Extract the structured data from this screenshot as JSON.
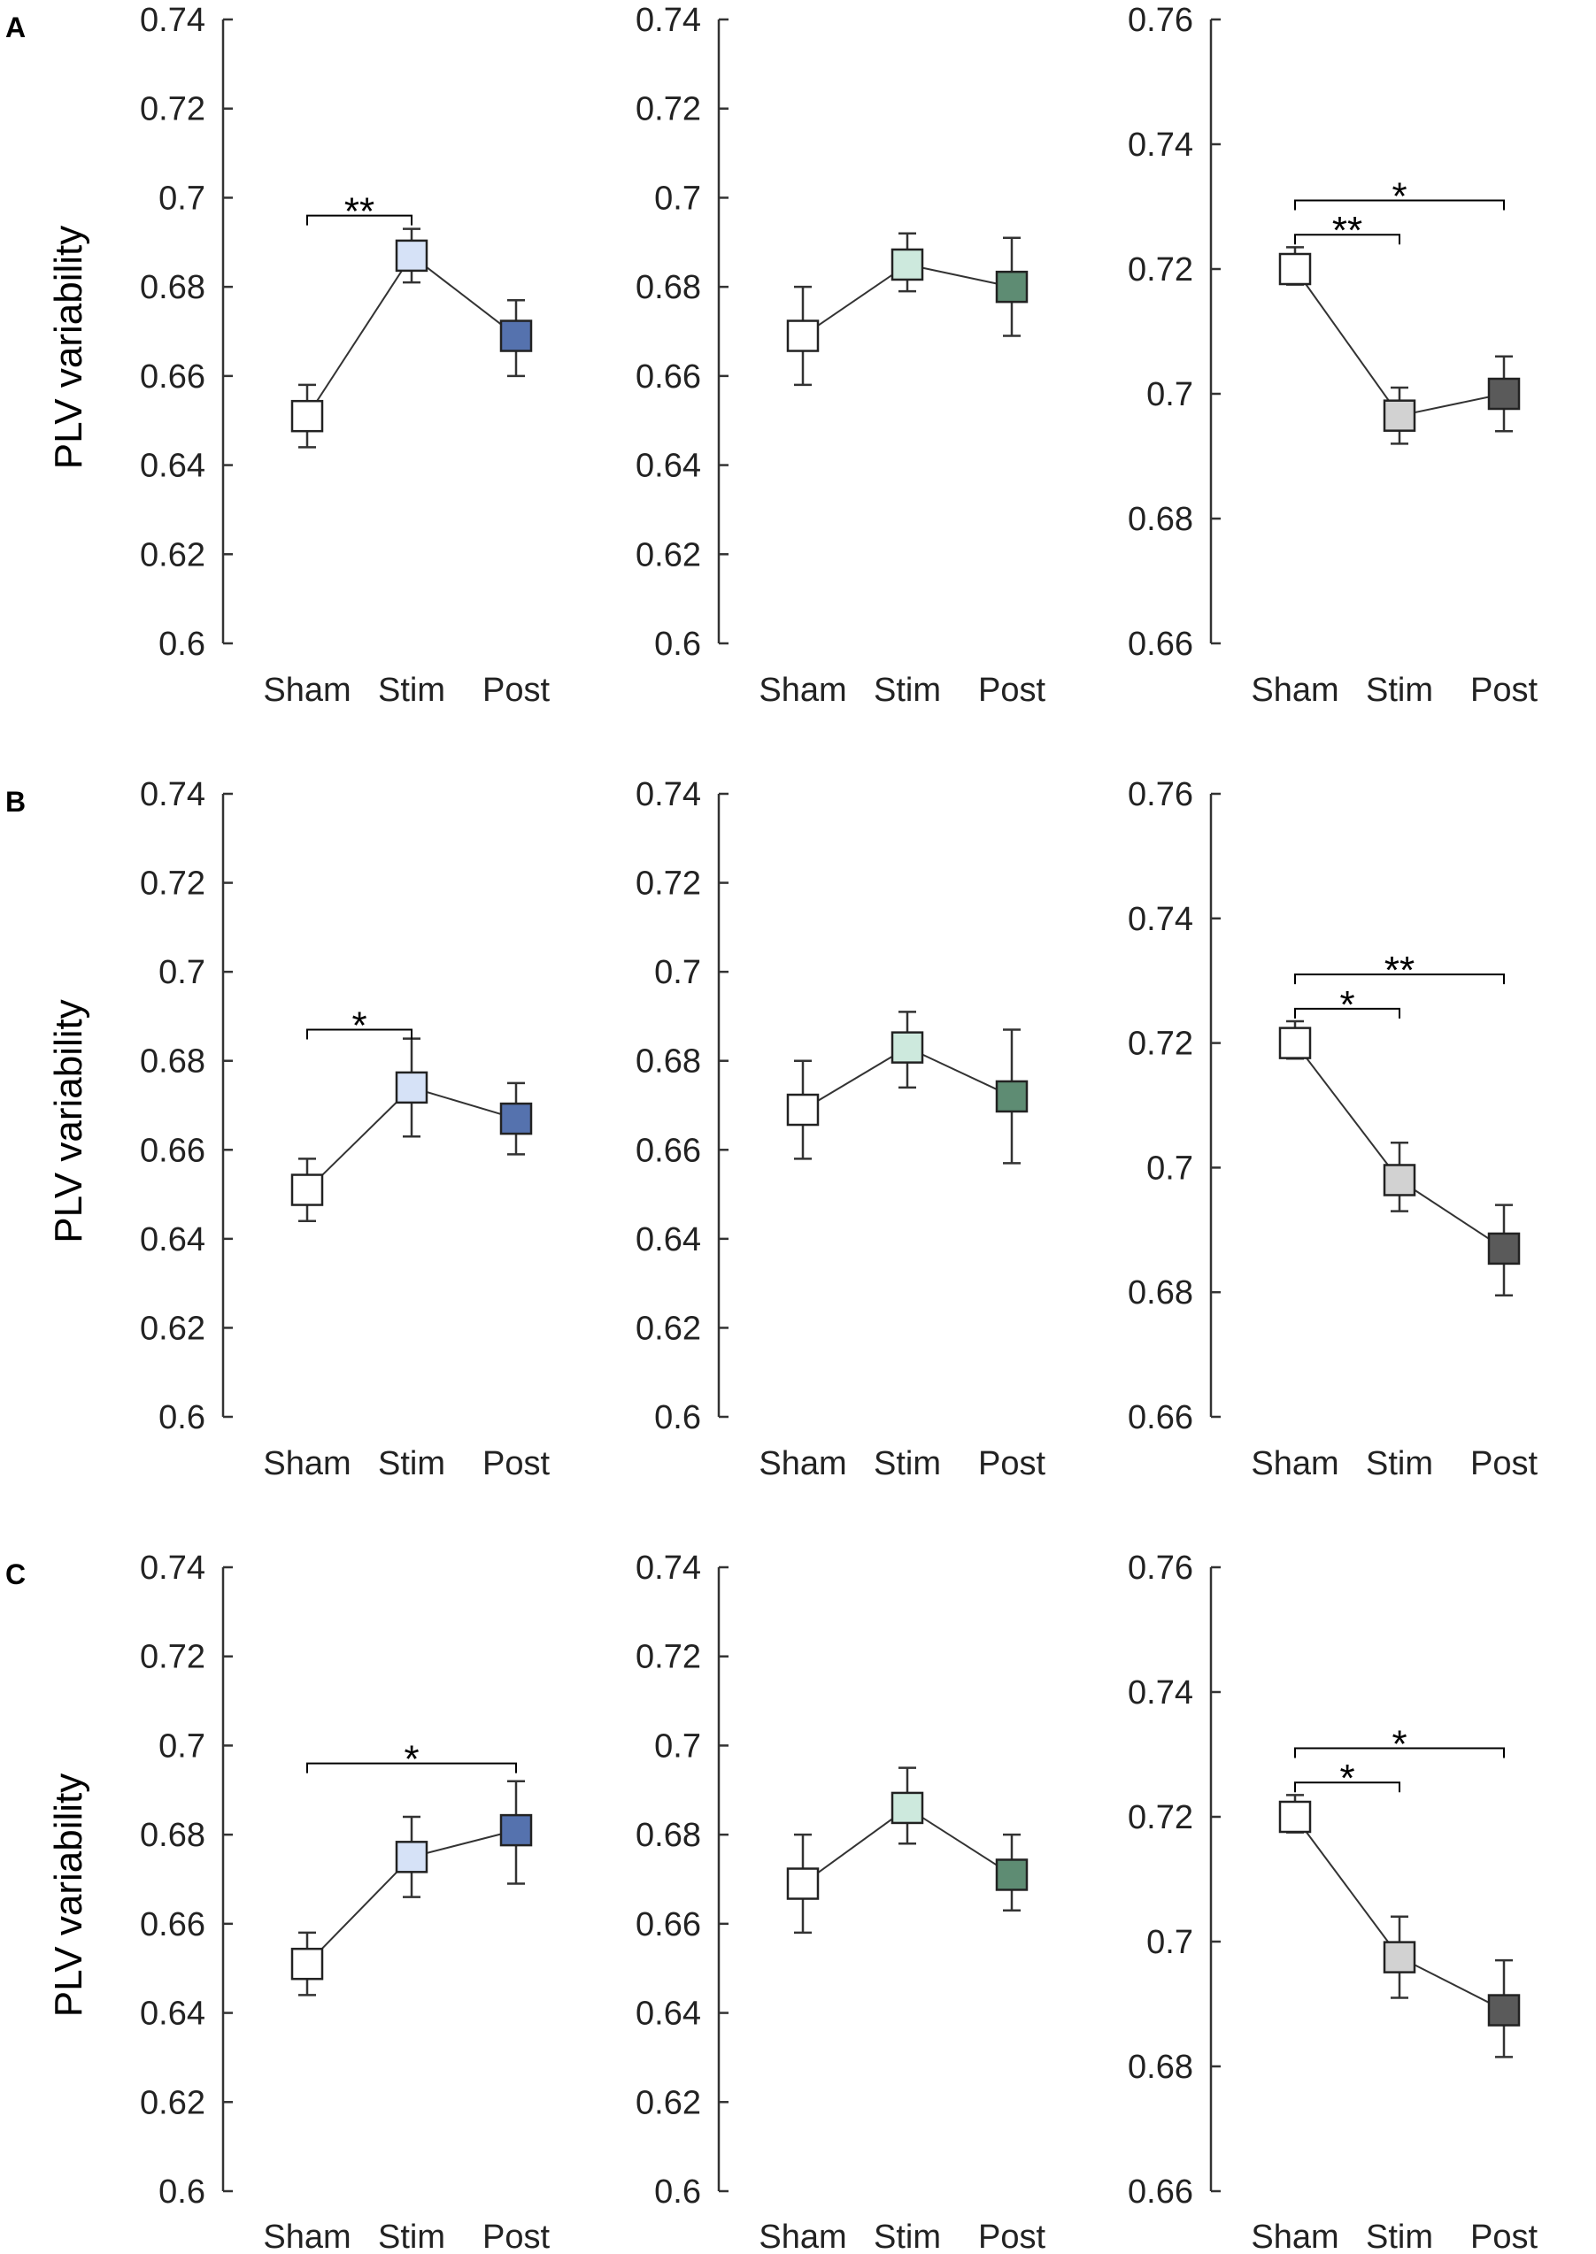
{
  "y_axis_title": "PLV variability",
  "categories": [
    "Sham",
    "Stim",
    "Post"
  ],
  "rows": [
    {
      "label": "A",
      "panels": [
        {
          "type": "line",
          "ylim": [
            0.6,
            0.74
          ],
          "yticks": [
            "0.6",
            "0.62",
            "0.64",
            "0.66",
            "0.68",
            "0.7",
            "0.72",
            "0.74"
          ],
          "points": [
            {
              "category": "Sham",
              "mean": 0.651,
              "err_low": 0.644,
              "err_high": 0.658,
              "color": "#ffffff"
            },
            {
              "category": "Stim",
              "mean": 0.687,
              "err_low": 0.681,
              "err_high": 0.693,
              "color": "#d6e2f7"
            },
            {
              "category": "Post",
              "mean": 0.669,
              "err_low": 0.66,
              "err_high": 0.677,
              "color": "#5572ae"
            }
          ],
          "significance": [
            {
              "from": 0,
              "to": 1,
              "y": 0.696,
              "label": "**"
            }
          ]
        },
        {
          "type": "line",
          "ylim": [
            0.6,
            0.74
          ],
          "yticks": [
            "0.6",
            "0.62",
            "0.64",
            "0.66",
            "0.68",
            "0.7",
            "0.72",
            "0.74"
          ],
          "points": [
            {
              "category": "Sham",
              "mean": 0.669,
              "err_low": 0.658,
              "err_high": 0.68,
              "color": "#ffffff"
            },
            {
              "category": "Stim",
              "mean": 0.685,
              "err_low": 0.679,
              "err_high": 0.692,
              "color": "#cde9dd"
            },
            {
              "category": "Post",
              "mean": 0.68,
              "err_low": 0.669,
              "err_high": 0.691,
              "color": "#5e8c73"
            }
          ],
          "significance": []
        },
        {
          "type": "line",
          "ylim": [
            0.66,
            0.76
          ],
          "yticks": [
            "0.66",
            "0.68",
            "0.7",
            "0.72",
            "0.74",
            "0.76"
          ],
          "points": [
            {
              "category": "Sham",
              "mean": 0.72,
              "err_low": 0.7175,
              "err_high": 0.7235,
              "color": "#ffffff"
            },
            {
              "category": "Stim",
              "mean": 0.6965,
              "err_low": 0.692,
              "err_high": 0.701,
              "color": "#d2d2d2"
            },
            {
              "category": "Post",
              "mean": 0.7,
              "err_low": 0.694,
              "err_high": 0.706,
              "color": "#5a5a5a"
            }
          ],
          "significance": [
            {
              "from": 0,
              "to": 2,
              "y": 0.731,
              "label": "*"
            },
            {
              "from": 0,
              "to": 1,
              "y": 0.7255,
              "label": "**"
            }
          ]
        }
      ]
    },
    {
      "label": "B",
      "panels": [
        {
          "type": "line",
          "ylim": [
            0.6,
            0.74
          ],
          "yticks": [
            "0.6",
            "0.62",
            "0.64",
            "0.66",
            "0.68",
            "0.7",
            "0.72",
            "0.74"
          ],
          "points": [
            {
              "category": "Sham",
              "mean": 0.651,
              "err_low": 0.644,
              "err_high": 0.658,
              "color": "#ffffff"
            },
            {
              "category": "Stim",
              "mean": 0.674,
              "err_low": 0.663,
              "err_high": 0.685,
              "color": "#d6e2f7"
            },
            {
              "category": "Post",
              "mean": 0.667,
              "err_low": 0.659,
              "err_high": 0.675,
              "color": "#5572ae"
            }
          ],
          "significance": [
            {
              "from": 0,
              "to": 1,
              "y": 0.687,
              "label": "*"
            }
          ]
        },
        {
          "type": "line",
          "ylim": [
            0.6,
            0.74
          ],
          "yticks": [
            "0.6",
            "0.62",
            "0.64",
            "0.66",
            "0.68",
            "0.7",
            "0.72",
            "0.74"
          ],
          "points": [
            {
              "category": "Sham",
              "mean": 0.669,
              "err_low": 0.658,
              "err_high": 0.68,
              "color": "#ffffff"
            },
            {
              "category": "Stim",
              "mean": 0.683,
              "err_low": 0.674,
              "err_high": 0.691,
              "color": "#cde9dd"
            },
            {
              "category": "Post",
              "mean": 0.672,
              "err_low": 0.657,
              "err_high": 0.687,
              "color": "#5e8c73"
            }
          ],
          "significance": []
        },
        {
          "type": "line",
          "ylim": [
            0.66,
            0.76
          ],
          "yticks": [
            "0.66",
            "0.68",
            "0.7",
            "0.72",
            "0.74",
            "0.76"
          ],
          "points": [
            {
              "category": "Sham",
              "mean": 0.72,
              "err_low": 0.7175,
              "err_high": 0.7235,
              "color": "#ffffff"
            },
            {
              "category": "Stim",
              "mean": 0.698,
              "err_low": 0.693,
              "err_high": 0.704,
              "color": "#d2d2d2"
            },
            {
              "category": "Post",
              "mean": 0.687,
              "err_low": 0.6795,
              "err_high": 0.694,
              "color": "#5a5a5a"
            }
          ],
          "significance": [
            {
              "from": 0,
              "to": 2,
              "y": 0.731,
              "label": "**"
            },
            {
              "from": 0,
              "to": 1,
              "y": 0.7255,
              "label": "*"
            }
          ]
        }
      ]
    },
    {
      "label": "C",
      "panels": [
        {
          "type": "line",
          "ylim": [
            0.6,
            0.74
          ],
          "yticks": [
            "0.6",
            "0.62",
            "0.64",
            "0.66",
            "0.68",
            "0.7",
            "0.72",
            "0.74"
          ],
          "points": [
            {
              "category": "Sham",
              "mean": 0.651,
              "err_low": 0.644,
              "err_high": 0.658,
              "color": "#ffffff"
            },
            {
              "category": "Stim",
              "mean": 0.675,
              "err_low": 0.666,
              "err_high": 0.684,
              "color": "#d6e2f7"
            },
            {
              "category": "Post",
              "mean": 0.681,
              "err_low": 0.669,
              "err_high": 0.692,
              "color": "#5572ae"
            }
          ],
          "significance": [
            {
              "from": 0,
              "to": 2,
              "y": 0.696,
              "label": "*"
            }
          ]
        },
        {
          "type": "line",
          "ylim": [
            0.6,
            0.74
          ],
          "yticks": [
            "0.6",
            "0.62",
            "0.64",
            "0.66",
            "0.68",
            "0.7",
            "0.72",
            "0.74"
          ],
          "points": [
            {
              "category": "Sham",
              "mean": 0.669,
              "err_low": 0.658,
              "err_high": 0.68,
              "color": "#ffffff"
            },
            {
              "category": "Stim",
              "mean": 0.686,
              "err_low": 0.678,
              "err_high": 0.695,
              "color": "#cde9dd"
            },
            {
              "category": "Post",
              "mean": 0.671,
              "err_low": 0.663,
              "err_high": 0.68,
              "color": "#5e8c73"
            }
          ],
          "significance": []
        },
        {
          "type": "line",
          "ylim": [
            0.66,
            0.76
          ],
          "yticks": [
            "0.66",
            "0.68",
            "0.7",
            "0.72",
            "0.74",
            "0.76"
          ],
          "points": [
            {
              "category": "Sham",
              "mean": 0.72,
              "err_low": 0.7175,
              "err_high": 0.7235,
              "color": "#ffffff"
            },
            {
              "category": "Stim",
              "mean": 0.6975,
              "err_low": 0.691,
              "err_high": 0.704,
              "color": "#d2d2d2"
            },
            {
              "category": "Post",
              "mean": 0.689,
              "err_low": 0.6815,
              "err_high": 0.697,
              "color": "#5a5a5a"
            }
          ],
          "significance": [
            {
              "from": 0,
              "to": 2,
              "y": 0.731,
              "label": "*"
            },
            {
              "from": 0,
              "to": 1,
              "y": 0.7255,
              "label": "*"
            }
          ]
        }
      ]
    }
  ],
  "chart_data": [
    {
      "type": "line",
      "panel": "A-1",
      "title": "",
      "xlabel": "",
      "ylabel": "PLV variability",
      "categories": [
        "Sham",
        "Stim",
        "Post"
      ],
      "values": [
        0.651,
        0.687,
        0.669
      ],
      "ylim": [
        0.6,
        0.74
      ],
      "annotations": [
        "**"
      ]
    },
    {
      "type": "line",
      "panel": "A-2",
      "title": "",
      "xlabel": "",
      "ylabel": "",
      "categories": [
        "Sham",
        "Stim",
        "Post"
      ],
      "values": [
        0.669,
        0.685,
        0.68
      ],
      "ylim": [
        0.6,
        0.74
      ],
      "annotations": []
    },
    {
      "type": "line",
      "panel": "A-3",
      "title": "",
      "xlabel": "",
      "ylabel": "",
      "categories": [
        "Sham",
        "Stim",
        "Post"
      ],
      "values": [
        0.72,
        0.6965,
        0.7
      ],
      "ylim": [
        0.66,
        0.76
      ],
      "annotations": [
        "**",
        "*"
      ]
    },
    {
      "type": "line",
      "panel": "B-1",
      "title": "",
      "xlabel": "",
      "ylabel": "PLV variability",
      "categories": [
        "Sham",
        "Stim",
        "Post"
      ],
      "values": [
        0.651,
        0.674,
        0.667
      ],
      "ylim": [
        0.6,
        0.74
      ],
      "annotations": [
        "*"
      ]
    },
    {
      "type": "line",
      "panel": "B-2",
      "title": "",
      "xlabel": "",
      "ylabel": "",
      "categories": [
        "Sham",
        "Stim",
        "Post"
      ],
      "values": [
        0.669,
        0.683,
        0.672
      ],
      "ylim": [
        0.6,
        0.74
      ],
      "annotations": []
    },
    {
      "type": "line",
      "panel": "B-3",
      "title": "",
      "xlabel": "",
      "ylabel": "",
      "categories": [
        "Sham",
        "Stim",
        "Post"
      ],
      "values": [
        0.72,
        0.698,
        0.687
      ],
      "ylim": [
        0.66,
        0.76
      ],
      "annotations": [
        "*",
        "**"
      ]
    },
    {
      "type": "line",
      "panel": "C-1",
      "title": "",
      "xlabel": "",
      "ylabel": "PLV variability",
      "categories": [
        "Sham",
        "Stim",
        "Post"
      ],
      "values": [
        0.651,
        0.675,
        0.681
      ],
      "ylim": [
        0.6,
        0.74
      ],
      "annotations": [
        "*"
      ]
    },
    {
      "type": "line",
      "panel": "C-2",
      "title": "",
      "xlabel": "",
      "ylabel": "",
      "categories": [
        "Sham",
        "Stim",
        "Post"
      ],
      "values": [
        0.669,
        0.686,
        0.671
      ],
      "ylim": [
        0.6,
        0.74
      ],
      "annotations": []
    },
    {
      "type": "line",
      "panel": "C-3",
      "title": "",
      "xlabel": "",
      "ylabel": "",
      "categories": [
        "Sham",
        "Stim",
        "Post"
      ],
      "values": [
        0.72,
        0.6975,
        0.689
      ],
      "ylim": [
        0.66,
        0.76
      ],
      "annotations": [
        "*",
        "*"
      ]
    }
  ]
}
